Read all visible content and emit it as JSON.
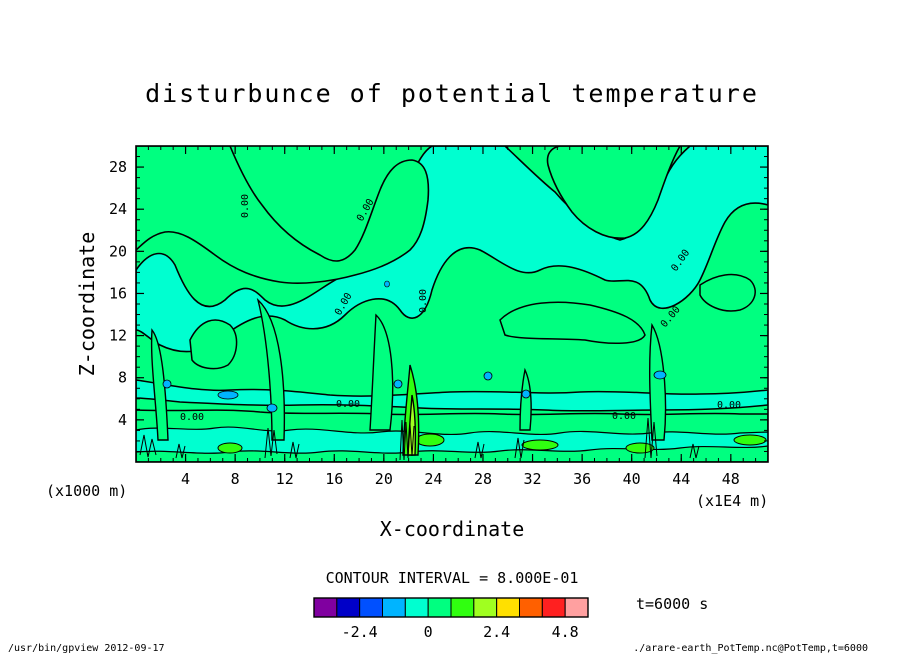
{
  "chart_data": {
    "type": "heatmap",
    "title": "disturbunce of potential temperature",
    "xlabel": "X-coordinate",
    "ylabel": "Z-coordinate",
    "x_unit_left": "(x1000 m)",
    "x_unit_right": "(x1E4 m)",
    "x_ticks": [
      "4",
      "8",
      "12",
      "16",
      "20",
      "24",
      "28",
      "32",
      "36",
      "40",
      "44",
      "48"
    ],
    "y_ticks": [
      "4",
      "8",
      "12",
      "16",
      "20",
      "24",
      "28"
    ],
    "xlim": [
      0,
      51
    ],
    "ylim": [
      0,
      30
    ],
    "contour_interval_label": "CONTOUR INTERVAL = 8.000E-01",
    "time_label": "t=6000 s",
    "contour_labels": [
      "0.00",
      "0.00",
      "0.00",
      "0.00",
      "0.00",
      "0.00",
      "0.00",
      "0.00",
      "0.00",
      "0.00"
    ],
    "colorbar": {
      "colors": [
        "#8000a0",
        "#0000c8",
        "#0050ff",
        "#00b4ff",
        "#00ffd0",
        "#00ff80",
        "#30ff10",
        "#a0ff20",
        "#ffe000",
        "#ff6000",
        "#ff2020",
        "#ffa0a0"
      ],
      "tick_labels": [
        "-2.4",
        "0",
        "2.4",
        "4.8"
      ]
    },
    "footer_left": "/usr/bin/gpview  2012-09-17",
    "footer_right": "./arare-earth_PotTemp.nc@PotTemp,t=6000"
  }
}
